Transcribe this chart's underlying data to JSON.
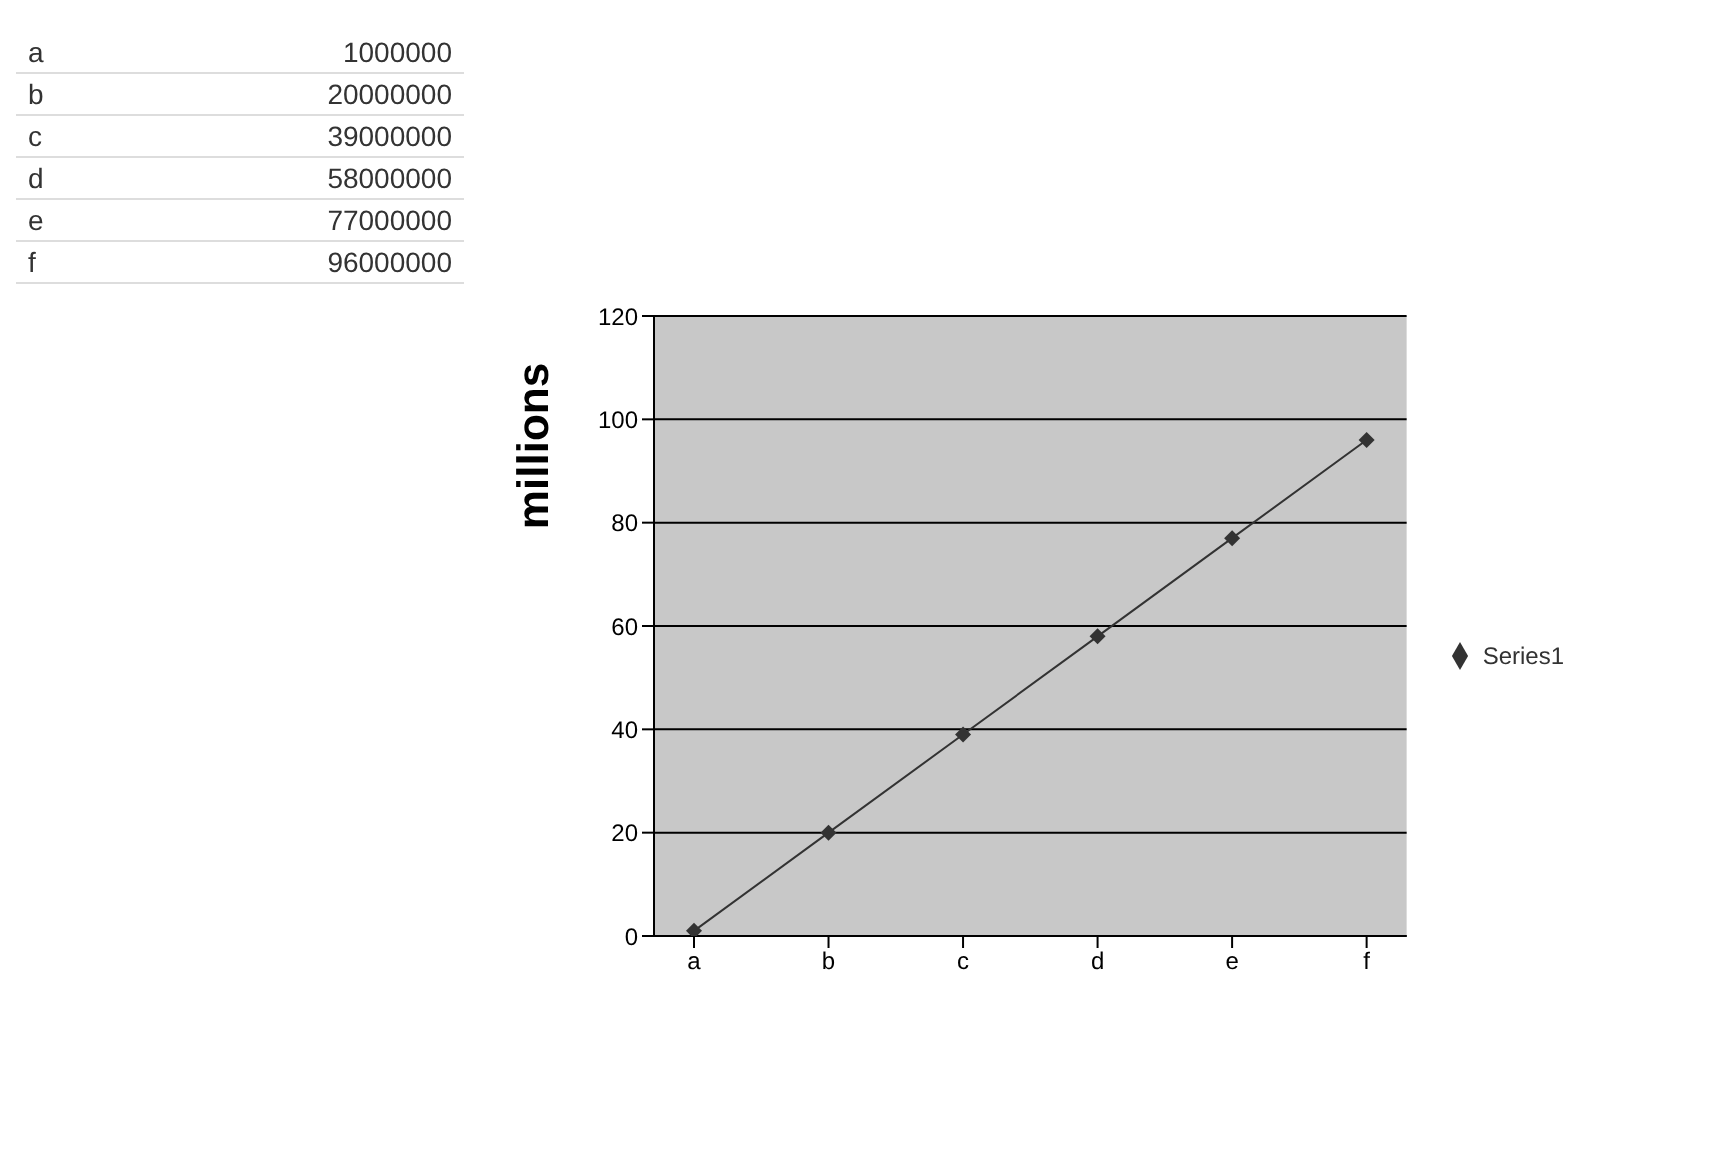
{
  "chart_data": {
    "type": "line",
    "ylabel": "millions",
    "categories": [
      "a",
      "b",
      "c",
      "d",
      "e",
      "f"
    ],
    "series": [
      {
        "name": "Series1",
        "color": "#333333",
        "values": [
          1,
          20,
          39,
          58,
          77,
          96
        ]
      }
    ],
    "annotations": [
      "1000000",
      "20000000",
      "39000000",
      "58000000",
      "77000000",
      "96000000"
    ],
    "ylim": [
      0,
      120
    ],
    "yticks": [
      0,
      20,
      40,
      60,
      80,
      100,
      120
    ],
    "grid": "y",
    "legend": "right",
    "marker": "diamond",
    "line_style": "solid"
  }
}
